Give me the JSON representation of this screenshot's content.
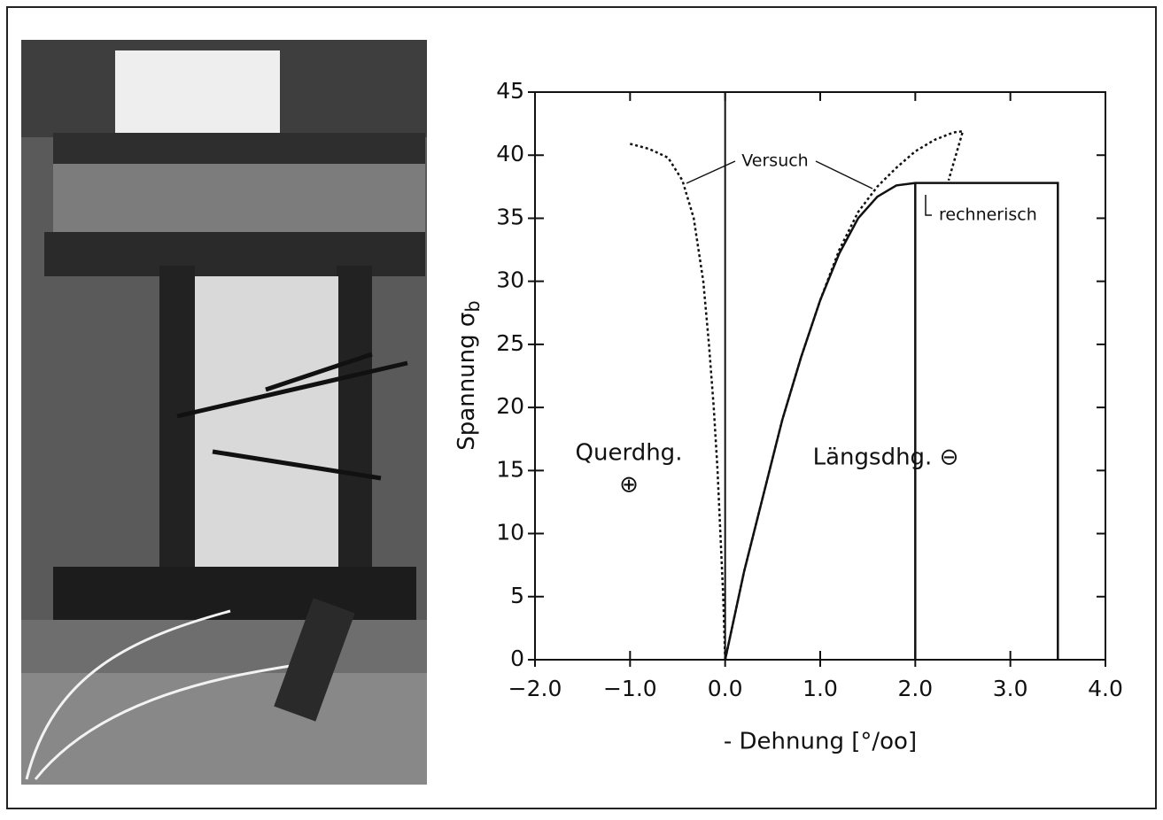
{
  "chart_data": {
    "type": "line",
    "xlabel": "- Dehnung [°/oo]",
    "ylabel": "Spannung σ",
    "ylabel_subscript": "b",
    "xlim": [
      -2,
      4
    ],
    "ylim": [
      0,
      45
    ],
    "xticks": [
      {
        "value": -2,
        "label": "−2.0"
      },
      {
        "value": -1,
        "label": "−1.0"
      },
      {
        "value": 0,
        "label": "0.0"
      },
      {
        "value": 1,
        "label": "1.0"
      },
      {
        "value": 2,
        "label": "2.0"
      },
      {
        "value": 3,
        "label": "3.0"
      },
      {
        "value": 4,
        "label": "4.0"
      }
    ],
    "yticks": [
      0,
      5,
      10,
      15,
      20,
      25,
      30,
      35,
      40,
      45
    ],
    "grid": false,
    "series": [
      {
        "name": "Versuch",
        "color": "#111111",
        "x": [
          -1.0,
          -0.8,
          -0.6,
          -0.45,
          -0.33,
          -0.23,
          -0.17,
          -0.12,
          -0.08,
          -0.05,
          -0.02,
          0,
          null,
          0,
          0.2,
          0.4,
          0.6,
          0.8,
          1.0,
          1.2,
          1.4,
          1.6,
          1.8,
          2.0,
          2.2,
          2.4,
          2.5,
          2.35
        ],
        "values": [
          40.9,
          40.5,
          39.8,
          38,
          35,
          30,
          25,
          20,
          15,
          10,
          5,
          0,
          null,
          0,
          7,
          13,
          19,
          24,
          28.5,
          32.5,
          35.5,
          37.5,
          39,
          40.3,
          41.2,
          41.8,
          41.9,
          38
        ]
      },
      {
        "name": "rechnerisch",
        "color": "#111111",
        "x": [
          0,
          0.2,
          0.4,
          0.6,
          0.8,
          1.0,
          1.2,
          1.4,
          1.6,
          1.8,
          2.0,
          3.5,
          3.5,
          null,
          2.0,
          2.0
        ],
        "values": [
          0,
          7,
          13,
          19,
          24,
          28.5,
          32.2,
          35,
          36.7,
          37.6,
          37.8,
          37.8,
          0,
          null,
          37.8,
          0
        ]
      }
    ],
    "annotations": [
      {
        "text": "Querdhg."
      },
      {
        "text": "⊕"
      },
      {
        "text": "Längsdhg. ⊖"
      }
    ]
  }
}
